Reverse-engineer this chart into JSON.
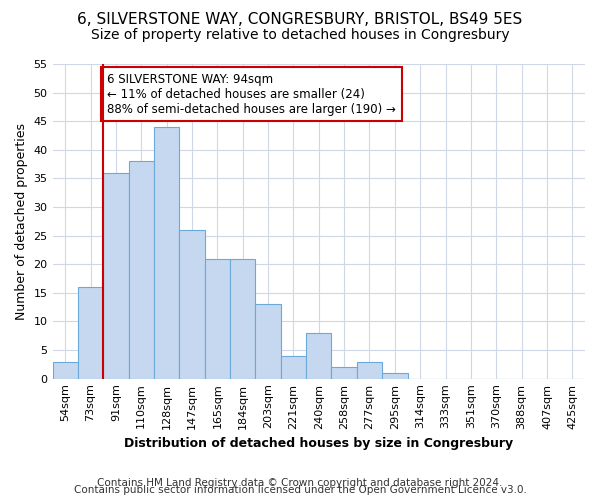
{
  "title1": "6, SILVERSTONE WAY, CONGRESBURY, BRISTOL, BS49 5ES",
  "title2": "Size of property relative to detached houses in Congresbury",
  "xlabel": "Distribution of detached houses by size in Congresbury",
  "ylabel": "Number of detached properties",
  "bar_labels": [
    "54sqm",
    "73sqm",
    "91sqm",
    "110sqm",
    "128sqm",
    "147sqm",
    "165sqm",
    "184sqm",
    "203sqm",
    "221sqm",
    "240sqm",
    "258sqm",
    "277sqm",
    "295sqm",
    "314sqm",
    "333sqm",
    "351sqm",
    "370sqm",
    "388sqm",
    "407sqm",
    "425sqm"
  ],
  "bar_values": [
    3,
    16,
    36,
    38,
    44,
    26,
    21,
    21,
    13,
    4,
    8,
    2,
    3,
    1,
    0,
    0,
    0,
    0,
    0,
    0,
    0
  ],
  "bar_color": "#c5d8f0",
  "bar_edgecolor": "#6baad8",
  "property_line_index": 2,
  "property_line_color": "#cc0000",
  "annotation_text": "6 SILVERSTONE WAY: 94sqm\n← 11% of detached houses are smaller (24)\n88% of semi-detached houses are larger (190) →",
  "annotation_box_edgecolor": "#cc0000",
  "annotation_box_facecolor": "#ffffff",
  "ylim": [
    0,
    55
  ],
  "yticks": [
    0,
    5,
    10,
    15,
    20,
    25,
    30,
    35,
    40,
    45,
    50,
    55
  ],
  "footer1": "Contains HM Land Registry data © Crown copyright and database right 2024.",
  "footer2": "Contains public sector information licensed under the Open Government Licence v3.0.",
  "bg_color": "#ffffff",
  "plot_bg_color": "#ffffff",
  "grid_color": "#d0d8e8",
  "title_fontsize": 11,
  "subtitle_fontsize": 10,
  "label_fontsize": 9,
  "tick_fontsize": 8,
  "annotation_fontsize": 8.5,
  "footer_fontsize": 7.5
}
